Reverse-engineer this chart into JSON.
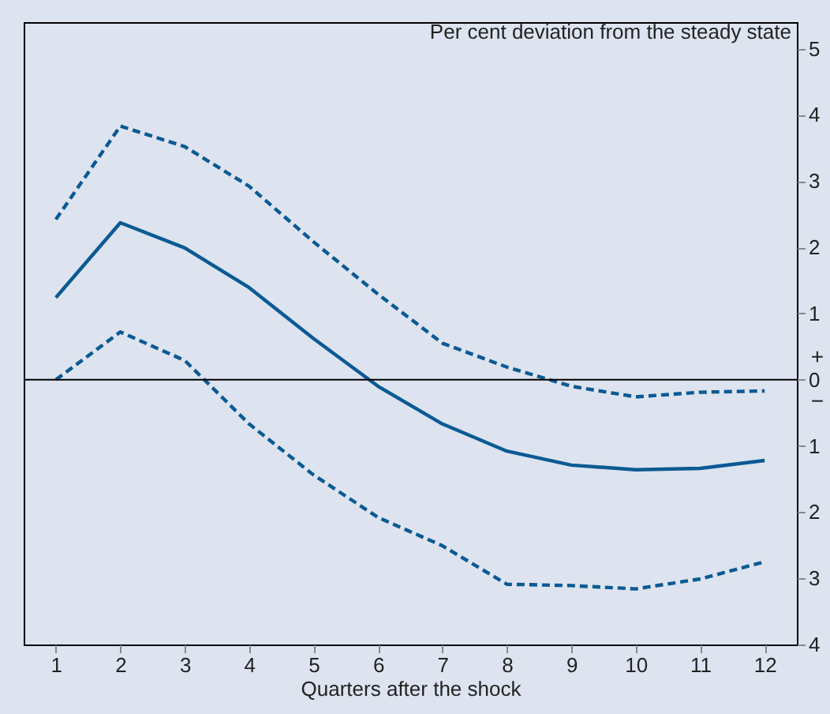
{
  "chart_data": {
    "type": "line",
    "xlabel": "Quarters after the shock",
    "ylabel": "Per cent deviation from the steady state",
    "x": [
      1,
      2,
      3,
      4,
      5,
      6,
      7,
      8,
      9,
      10,
      11,
      12
    ],
    "series": [
      {
        "color": "#0a5a94",
        "line_style": "solid",
        "values": [
          1.24,
          2.37,
          1.99,
          1.39,
          0.62,
          -0.1,
          -0.67,
          -1.08,
          -1.29,
          -1.36,
          -1.34,
          -1.22
        ]
      },
      {
        "color": "#0a5a94",
        "line_style": "dashed",
        "values": [
          2.42,
          3.83,
          3.52,
          2.92,
          2.08,
          1.29,
          0.55,
          0.19,
          -0.1,
          -0.26,
          -0.19,
          -0.17
        ]
      },
      {
        "color": "#0a5a94",
        "line_style": "dashed",
        "values": [
          0,
          0.72,
          0.29,
          -0.67,
          -1.44,
          -2.08,
          -2.51,
          -3.09,
          -3.11,
          -3.16,
          -3.01,
          -2.75
        ]
      }
    ],
    "xlim": [
      0.5,
      12.5
    ],
    "xticks": [
      1,
      2,
      3,
      4,
      5,
      6,
      7,
      8,
      9,
      10,
      11,
      12
    ],
    "ylim": [
      -4,
      5.4
    ],
    "yticks": [
      {
        "value": -4,
        "label": "4"
      },
      {
        "value": -3,
        "label": "3"
      },
      {
        "value": -2,
        "label": "2"
      },
      {
        "value": -1,
        "label": "1"
      },
      0,
      1,
      2,
      3,
      4,
      5
    ],
    "ref_lines": [
      {
        "axis": "y",
        "value": 0,
        "color": "#000000"
      }
    ],
    "annotations": [
      "+",
      "−"
    ],
    "grid": false,
    "marker": "none"
  }
}
